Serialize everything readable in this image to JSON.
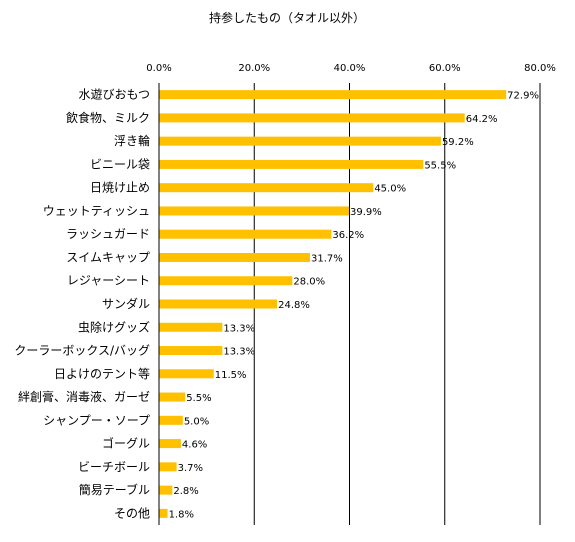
{
  "chart_data": {
    "type": "bar",
    "orientation": "horizontal",
    "title": "持参したもの（タオル以外）",
    "xlabel": "",
    "ylabel": "",
    "xlim": [
      0,
      80
    ],
    "ticks": [
      0,
      20,
      40,
      60,
      80
    ],
    "tick_labels": [
      "0.0%",
      "20.0%",
      "40.0%",
      "60.0%",
      "80.0%"
    ],
    "grid": true,
    "bar_color": "#FFC000",
    "categories": [
      "水遊びおもつ",
      "飲食物、ミルク",
      "浮き輪",
      "ビニール袋",
      "日焼け止め",
      "ウェットティッシュ",
      "ラッシュガード",
      "スイムキャップ",
      "レジャーシート",
      "サンダル",
      "虫除けグッズ",
      "クーラーボックス/バッグ",
      "日よけのテント等",
      "絆創膏、消毒液、ガーゼ",
      "シャンプー・ソープ",
      "ゴーグル",
      "ビーチボール",
      "簡易テーブル",
      "その他"
    ],
    "values": [
      72.9,
      64.2,
      59.2,
      55.5,
      45.0,
      39.9,
      36.2,
      31.7,
      28.0,
      24.8,
      13.3,
      13.3,
      11.5,
      5.5,
      5.0,
      4.6,
      3.7,
      2.8,
      1.8
    ],
    "value_labels": [
      "72.9%",
      "64.2%",
      "59.2%",
      "55.5%",
      "45.0%",
      "39.9%",
      "36.2%",
      "31.7%",
      "28.0%",
      "24.8%",
      "13.3%",
      "13.3%",
      "11.5%",
      "5.5%",
      "5.0%",
      "4.6%",
      "3.7%",
      "2.8%",
      "1.8%"
    ]
  }
}
